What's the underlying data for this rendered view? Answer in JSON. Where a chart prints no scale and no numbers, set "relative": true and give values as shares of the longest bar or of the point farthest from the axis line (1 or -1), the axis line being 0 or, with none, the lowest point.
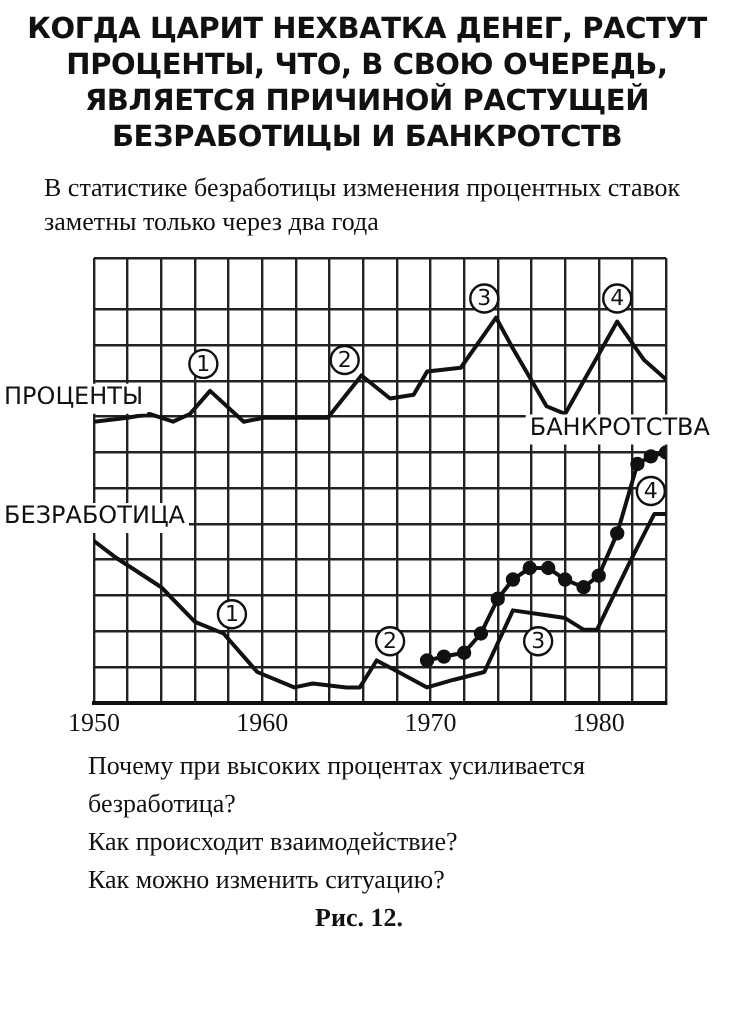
{
  "chart_data": {
    "type": "line",
    "relative": true,
    "title": "КОГДА ЦАРИТ НЕХВАТКА ДЕНЕГ, РАСТУТ ПРОЦЕНТЫ, ЧТО, В СВОЮ ОЧЕРЕДЬ, ЯВЛЯЕТСЯ ПРИЧИНОЙ РАСТУЩЕЙ БЕЗРАБОТИЦЫ И БАНКРОТСТВ",
    "subtitle": "В статистике безработицы изменения процентных ставок заметны только через два года",
    "xlim": [
      1950,
      1984
    ],
    "xticks": [
      1950,
      {
        "value": 1952,
        "label": null
      },
      {
        "value": 1954,
        "label": null
      },
      {
        "value": 1956,
        "label": null
      },
      {
        "value": 1958,
        "label": null
      },
      1960,
      {
        "value": 1962,
        "label": null
      },
      {
        "value": 1964,
        "label": null
      },
      {
        "value": 1966,
        "label": null
      },
      {
        "value": 1968,
        "label": null
      },
      1970,
      {
        "value": 1972,
        "label": null
      },
      {
        "value": 1974,
        "label": null
      },
      {
        "value": 1976,
        "label": null
      },
      {
        "value": 1978,
        "label": null
      },
      1980,
      {
        "value": 1982,
        "label": null
      },
      {
        "value": 1984,
        "label": null
      }
    ],
    "grid": true,
    "legend": false,
    "marker": "none",
    "line_style": "solid",
    "series": [
      {
        "name": "ПРОЦЕНТЫ",
        "color": "#111111",
        "x": [
          1950,
          1952,
          1953.3,
          1954.7,
          1955.7,
          1956.9,
          1958.9,
          1960.1,
          1961.9,
          1963.9,
          1965.9,
          1967.6,
          1969,
          1969.8,
          1971.8,
          1973.9,
          1974.9,
          1976.9,
          1978,
          1981.1,
          1982.7,
          1984
        ],
        "values": [
          0.73,
          0.74,
          0.75,
          0.73,
          0.75,
          0.81,
          0.73,
          0.74,
          0.74,
          0.74,
          0.85,
          0.79,
          0.8,
          0.86,
          0.87,
          1,
          0.92,
          0.77,
          0.75,
          0.99,
          0.89,
          0.84
        ]
      },
      {
        "name": "БЕЗРАБОТИЦА",
        "color": "#111111",
        "x": [
          1950,
          1951.2,
          1954,
          1956,
          1957.7,
          1959.7,
          1961.9,
          1963,
          1965,
          1965.8,
          1966.8,
          1968.1,
          1969.8,
          1971.4,
          1973.2,
          1974.9,
          1976.5,
          1978,
          1979.1,
          1979.9,
          1981.9,
          1983.3,
          1984
        ],
        "values": [
          0.42,
          0.38,
          0.3,
          0.21,
          0.18,
          0.08,
          0.04,
          0.05,
          0.04,
          0.04,
          0.11,
          0.08,
          0.04,
          0.06,
          0.08,
          0.24,
          0.23,
          0.22,
          0.19,
          0.19,
          0.37,
          0.49,
          0.49
        ]
      },
      {
        "name": "БАНКРОТСТВА",
        "color": "#111111",
        "marker": "circle",
        "x": [
          1969.8,
          1970.8,
          1972,
          1973,
          1974,
          1974.9,
          1975.9,
          1977,
          1978,
          1979.1,
          1980,
          1981.1,
          1982.3,
          1983.1,
          1984
        ],
        "values": [
          0.11,
          0.12,
          0.13,
          0.18,
          0.27,
          0.32,
          0.35,
          0.35,
          0.32,
          0.3,
          0.33,
          0.44,
          0.62,
          0.64,
          0.65
        ]
      }
    ],
    "annotations": [
      {
        "text": "1",
        "x": 1956.5,
        "y": 0.88
      },
      {
        "text": "2",
        "x": 1964.9,
        "y": 0.89
      },
      {
        "text": "3",
        "x": 1973.2,
        "y": 1.05
      },
      {
        "text": "4",
        "x": 1981.1,
        "y": 1.05
      },
      {
        "text": "1",
        "x": 1958.2,
        "y": 0.23
      },
      {
        "text": "2",
        "x": 1967.6,
        "y": 0.16
      },
      {
        "text": "3",
        "x": 1976.4,
        "y": 0.16
      },
      {
        "text": "4",
        "x": 1983.1,
        "y": 0.55
      },
      "Почему при высоких процентах усиливается безработица?",
      "Как происходит взаимодействие?",
      "Как можно изменить ситуацию?",
      "Рис. 12."
    ]
  }
}
